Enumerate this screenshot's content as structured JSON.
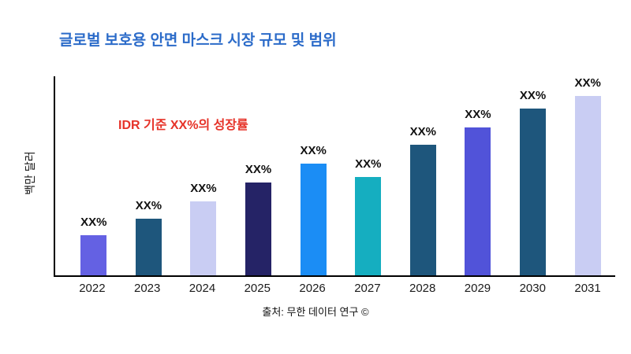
{
  "title": "글로벌 보호용 안면 마스크 시장 규모 및 범위",
  "annotation": "IDR 기준 XX%의 성장률",
  "source": "출처: 무한 데이터 연구 ©",
  "colors": {
    "title_text": "#2b6bc9",
    "annotation_text": "#e63329",
    "axis": "#000000"
  },
  "chart_data": {
    "type": "bar",
    "title": "글로벌 보호용 안면 마스크 시장 규모 및 범위",
    "xlabel": "",
    "ylabel": "백만 달러",
    "categories": [
      "2022",
      "2023",
      "2024",
      "2025",
      "2026",
      "2027",
      "2028",
      "2029",
      "2030",
      "2031"
    ],
    "values": [
      21,
      30,
      39,
      49,
      59,
      52,
      69,
      78,
      88,
      98
    ],
    "ylim": [
      0,
      105
    ],
    "bar_labels": [
      "XX%",
      "XX%",
      "XX%",
      "XX%",
      "XX%",
      "XX%",
      "XX%",
      "XX%",
      "XX%",
      "XX%"
    ],
    "bar_colors": [
      "#6461e3",
      "#1e567c",
      "#c9cdf3",
      "#252366",
      "#1b8df5",
      "#15aec0",
      "#1e567c",
      "#5153d9",
      "#1e567c",
      "#c9cdf3"
    ],
    "grid": false,
    "legend": false,
    "annotation": "IDR 기준 XX%의 성장률"
  }
}
